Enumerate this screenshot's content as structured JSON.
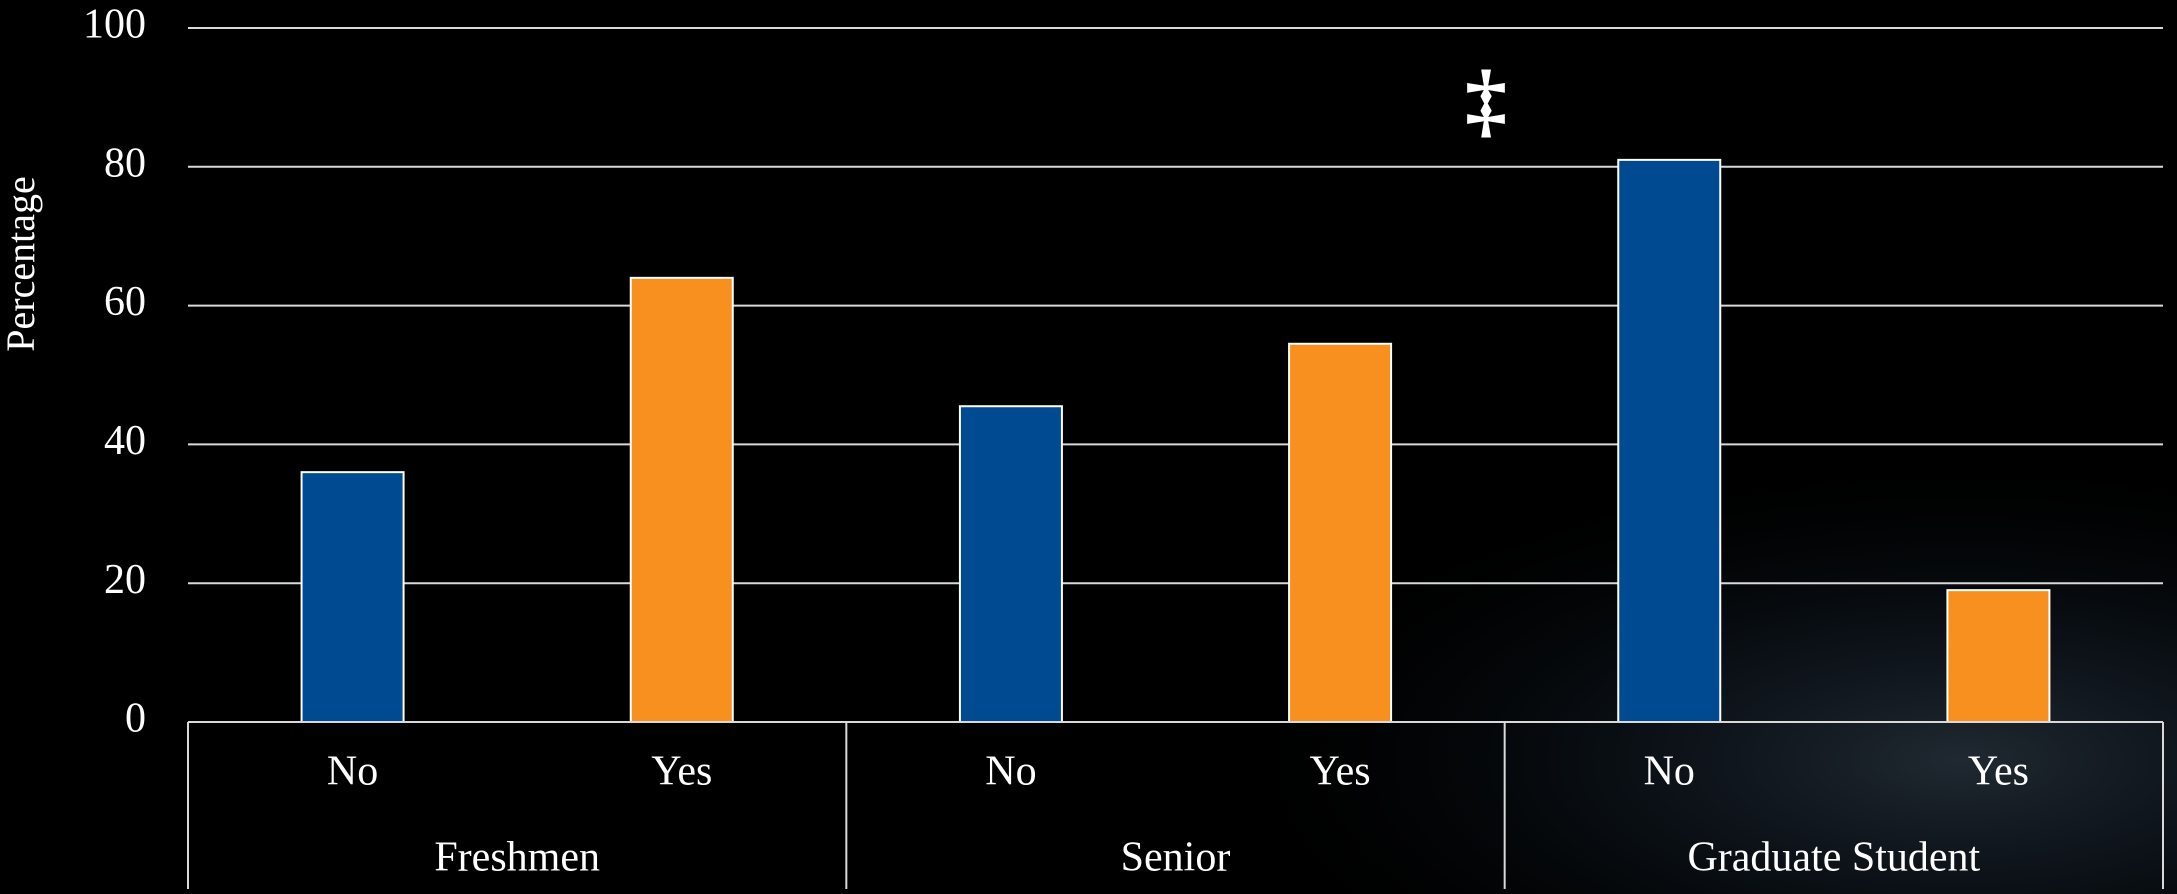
{
  "chart_data": {
    "type": "bar",
    "y_label": "Percentage",
    "annotation": "‡",
    "categories": [
      "No",
      "Yes",
      "No",
      "Yes",
      "No",
      "Yes"
    ],
    "groups": [
      "Freshmen",
      "Senior",
      "Graduate Student"
    ],
    "values": [
      36,
      64,
      45.5,
      54.5,
      81,
      19
    ],
    "colors": [
      "#004a91",
      "#f7901e",
      "#004a91",
      "#f7901e",
      "#004a91",
      "#f7901e"
    ],
    "ylim": [
      0,
      100
    ],
    "yticks": [
      0,
      20,
      40,
      60,
      80,
      100
    ],
    "grid": true
  }
}
